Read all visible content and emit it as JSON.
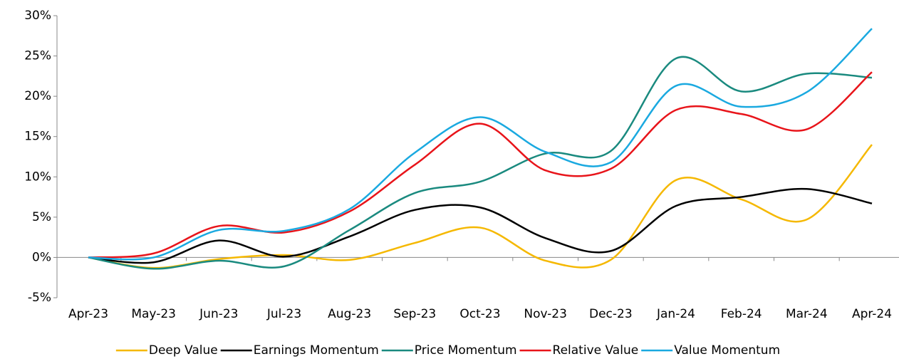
{
  "chart_data": {
    "type": "line",
    "categories": [
      "Apr-23",
      "May-23",
      "Jun-23",
      "Jul-23",
      "Aug-23",
      "Sep-23",
      "Oct-23",
      "Nov-23",
      "Dec-23",
      "Jan-24",
      "Feb-24",
      "Mar-24",
      "Apr-24"
    ],
    "series": [
      {
        "name": "Deep Value",
        "color": "#f5b800",
        "values": [
          0,
          -1.3,
          -0.2,
          0.3,
          -0.3,
          1.8,
          3.7,
          -0.4,
          -0.3,
          9.6,
          7.2,
          4.7,
          14.0
        ]
      },
      {
        "name": "Earnings Momentum",
        "color": "#000000",
        "values": [
          0,
          -0.6,
          2.1,
          0.1,
          2.6,
          5.9,
          6.2,
          2.4,
          0.8,
          6.4,
          7.5,
          8.5,
          6.7
        ]
      },
      {
        "name": "Price Momentum",
        "color": "#1a8a7f",
        "values": [
          0,
          -1.4,
          -0.4,
          -1.1,
          3.4,
          8.0,
          9.4,
          12.9,
          13.2,
          24.7,
          20.6,
          22.8,
          22.3
        ]
      },
      {
        "name": "Relative Value",
        "color": "#e8141a",
        "values": [
          0,
          0.5,
          3.9,
          3.1,
          5.7,
          11.5,
          16.6,
          10.8,
          11.0,
          18.3,
          17.8,
          15.9,
          23.0
        ]
      },
      {
        "name": "Value Momentum",
        "color": "#1aa9e0",
        "values": [
          0,
          0.0,
          3.4,
          3.3,
          6.0,
          13.0,
          17.4,
          13.1,
          11.8,
          21.3,
          18.7,
          20.5,
          28.4
        ]
      }
    ],
    "ylim": [
      -5,
      30
    ],
    "yticks": [
      {
        "value": -5,
        "label": "-5%"
      },
      {
        "value": 0,
        "label": "0%"
      },
      {
        "value": 5,
        "label": "5%"
      },
      {
        "value": 10,
        "label": "10%"
      },
      {
        "value": 15,
        "label": "15%"
      },
      {
        "value": 20,
        "label": "20%"
      },
      {
        "value": 25,
        "label": "25%"
      },
      {
        "value": 30,
        "label": "30%"
      }
    ],
    "grid": false,
    "smooth": true,
    "legend": "bottom"
  }
}
